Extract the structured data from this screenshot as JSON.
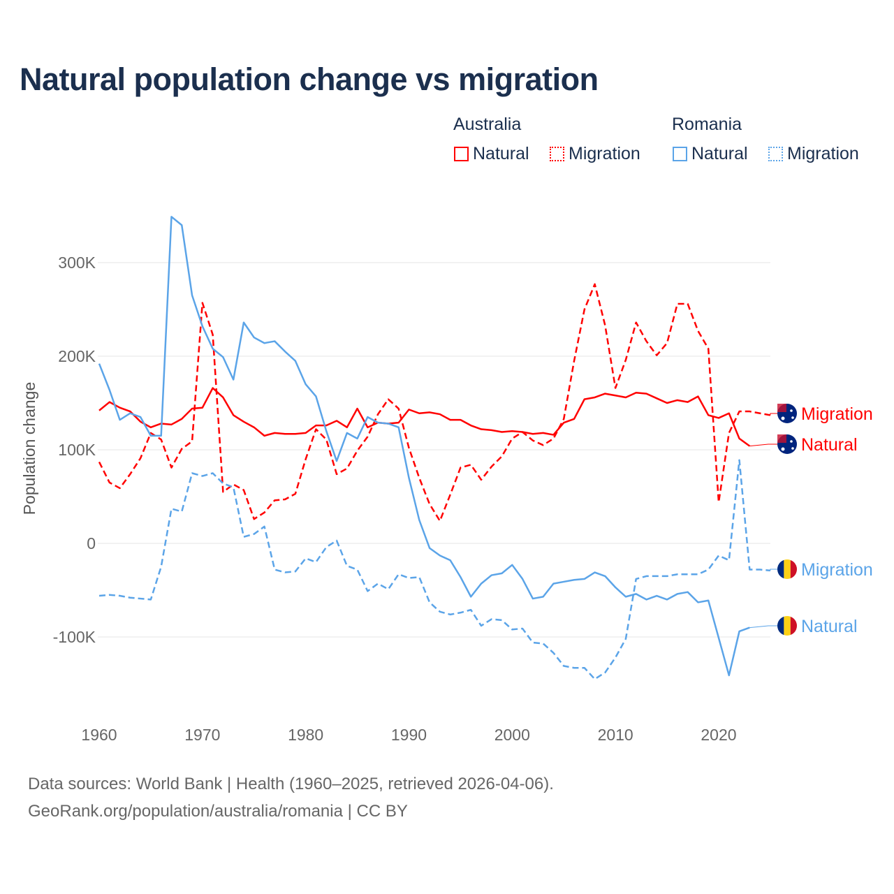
{
  "chart_data": {
    "type": "line",
    "title": "Natural population change vs migration",
    "xlabel": "",
    "ylabel": "Population change",
    "xlim": [
      1960,
      2025
    ],
    "ylim": [
      -160000,
      360000
    ],
    "grid": true,
    "x_ticks": [
      {
        "value": 1960,
        "label": "1960"
      },
      {
        "value": 1970,
        "label": "1970"
      },
      {
        "value": 1980,
        "label": "1980"
      },
      {
        "value": 1990,
        "label": "1990"
      },
      {
        "value": 2000,
        "label": "2000"
      },
      {
        "value": 2010,
        "label": "2010"
      },
      {
        "value": 2020,
        "label": "2020"
      }
    ],
    "y_ticks": [
      {
        "value": 300000,
        "label": "300K"
      },
      {
        "value": 200000,
        "label": "200K"
      },
      {
        "value": 100000,
        "label": "100K"
      },
      {
        "value": 0,
        "label": "0"
      },
      {
        "value": -100000,
        "label": "-100K"
      }
    ],
    "legend": {
      "placement": "top-right",
      "groups": [
        {
          "name": "Australia",
          "items": [
            "Natural",
            "Migration"
          ]
        },
        {
          "name": "Romania",
          "items": [
            "Natural",
            "Migration"
          ]
        }
      ]
    },
    "colors": {
      "Australia": "#ff0000",
      "Romania": "#5ba4e8"
    },
    "start_year": 1960,
    "series": [
      {
        "country": "Australia",
        "name": "Migration",
        "style": "dashed",
        "end_label": "Migration",
        "values": [
          87,
          65,
          59,
          74,
          91,
          118,
          111,
          81,
          101,
          109,
          257,
          223,
          55,
          63,
          57,
          26,
          33,
          46,
          47,
          53,
          90,
          122,
          111,
          74,
          80,
          99,
          114,
          138,
          154,
          144,
          102,
          70,
          42,
          24,
          52,
          81,
          84,
          68,
          82,
          93,
          112,
          119,
          110,
          105,
          112,
          133,
          195,
          250,
          277,
          233,
          166,
          196,
          236,
          216,
          201,
          214,
          256,
          256,
          227,
          208,
          44,
          118,
          141,
          141,
          139,
          137
        ]
      },
      {
        "country": "Australia",
        "name": "Natural",
        "style": "solid",
        "end_label": "Natural",
        "values": [
          142,
          151,
          145,
          141,
          130,
          124,
          128,
          127,
          133,
          144,
          145,
          166,
          156,
          137,
          130,
          124,
          115,
          118,
          117,
          117,
          118,
          126,
          126,
          131,
          124,
          144,
          124,
          129,
          128,
          129,
          143,
          139,
          140,
          138,
          132,
          132,
          126,
          122,
          121,
          119,
          120,
          119,
          117,
          118,
          116,
          129,
          133,
          154,
          156,
          160,
          158,
          156,
          161,
          160,
          155,
          150,
          153,
          151,
          157,
          137,
          134,
          139,
          112,
          104
        ]
      },
      {
        "country": "Romania",
        "name": "Migration",
        "style": "dashed",
        "end_label": "Migration",
        "values": [
          -56,
          -55,
          -56,
          -58,
          -59,
          -60,
          -25,
          37,
          34,
          75,
          72,
          75,
          64,
          60,
          7,
          10,
          18,
          -28,
          -31,
          -30,
          -16,
          -20,
          -4,
          3,
          -24,
          -28,
          -51,
          -43,
          -49,
          -33,
          -37,
          -36,
          -63,
          -73,
          -76,
          -74,
          -71,
          -88,
          -81,
          -82,
          -92,
          -91,
          -106,
          -107,
          -117,
          -131,
          -133,
          -133,
          -145,
          -138,
          -122,
          -102,
          -38,
          -35,
          -35,
          -35,
          -33,
          -33,
          -33,
          -28,
          -13,
          -18,
          89,
          -28,
          -28,
          -29
        ]
      },
      {
        "country": "Romania",
        "name": "Natural",
        "style": "solid",
        "end_label": "Natural",
        "values": [
          192,
          164,
          132,
          139,
          135,
          115,
          115,
          349,
          340,
          265,
          232,
          208,
          199,
          175,
          236,
          220,
          214,
          216,
          205,
          195,
          170,
          157,
          120,
          88,
          118,
          112,
          135,
          129,
          128,
          124,
          70,
          25,
          -5,
          -13,
          -18,
          -36,
          -57,
          -43,
          -34,
          -32,
          -23,
          -38,
          -59,
          -57,
          -43,
          -41,
          -39,
          -38,
          -31,
          -35,
          -47,
          -57,
          -54,
          -60,
          -56,
          -60,
          -54,
          -52,
          -63,
          -61,
          -101,
          -141,
          -94,
          -90
        ]
      }
    ],
    "value_unit": "thousands"
  },
  "sources": {
    "line1": "Data sources: World Bank | Health (1960–2025, retrieved 2026-04-06).",
    "line2": "GeoRank.org/population/australia/romania | CC BY"
  }
}
